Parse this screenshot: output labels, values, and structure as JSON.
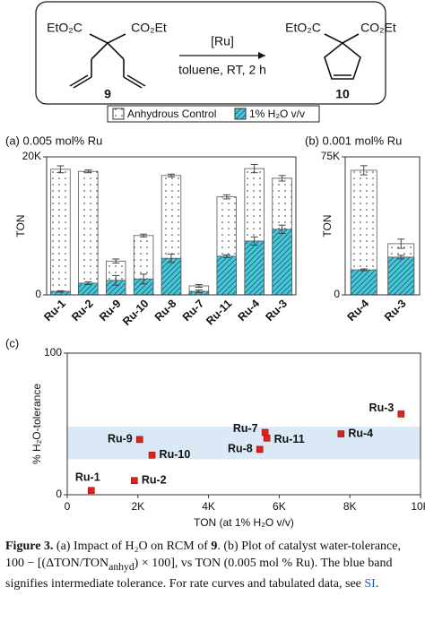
{
  "scheme": {
    "reactant": {
      "left_group": "EtO₂C",
      "right_group": "CO₂Et",
      "label": "9"
    },
    "reagent": "[Ru]",
    "conditions": "toluene, RT, 2 h",
    "product": {
      "left_group": "EtO₂C",
      "right_group": "CO₂Et",
      "label": "10"
    }
  },
  "chart_data": [
    {
      "type": "bar",
      "title": "(a) 0.005 mol% Ru",
      "y_label": "TON",
      "categories": [
        "Ru-1",
        "Ru-2",
        "Ru-9",
        "Ru-10",
        "Ru-8",
        "Ru-7",
        "Ru-11",
        "Ru-4",
        "Ru-3"
      ],
      "series": [
        {
          "name": "Anhydrous Control",
          "color": "#ffffff",
          "pattern": "dots",
          "values": [
            18200,
            17900,
            4900,
            8600,
            17300,
            1300,
            14200,
            18300,
            16900
          ],
          "errors": [
            500,
            200,
            300,
            200,
            200,
            200,
            300,
            600,
            400
          ]
        },
        {
          "name": "1% H₂O v/v",
          "color": "#4cc6d8",
          "pattern": "hatch",
          "values": [
            500,
            1700,
            2100,
            2300,
            5300,
            500,
            5600,
            7800,
            9500
          ],
          "errors": [
            100,
            200,
            700,
            700,
            600,
            200,
            200,
            600,
            600
          ]
        }
      ],
      "ylim": [
        0,
        20000
      ],
      "yticks": [
        0,
        {
          "value": 20000,
          "label": "20K"
        }
      ]
    },
    {
      "type": "bar",
      "title": "(b) 0.001 mol% Ru",
      "y_label": "TON",
      "categories": [
        "Ru-4",
        "Ru-3"
      ],
      "series": [
        {
          "color": "#ffffff",
          "pattern": "dots",
          "values": [
            67700,
            27800
          ],
          "errors": [
            2500,
            2500
          ]
        },
        {
          "color": "#4cc6d8",
          "pattern": "hatch",
          "values": [
            13600,
            20500
          ],
          "errors": [
            500,
            1000
          ]
        }
      ],
      "ylim": [
        0,
        75000
      ],
      "yticks": [
        0,
        {
          "value": 75000,
          "label": "75K"
        }
      ]
    },
    {
      "type": "scatter",
      "title": "(c)",
      "y_label": "% H₂O-tolerance",
      "x_label": "TON (at 1% H₂O v/v)",
      "labels": [
        "Ru-1",
        "Ru-2",
        "Ru-9",
        "Ru-10",
        "Ru-8",
        "Ru-7",
        "Ru-11",
        "Ru-4",
        "Ru-3"
      ],
      "x": [
        680,
        1900,
        2050,
        2400,
        5450,
        5600,
        5650,
        7750,
        9450
      ],
      "values": [
        3,
        10,
        39,
        28,
        32,
        44,
        40,
        43,
        57
      ],
      "color": "#d9251d",
      "band": [
        25,
        48
      ],
      "band_color": "#dbe9f6",
      "xlim": [
        0,
        10000
      ],
      "xticks": [
        0,
        {
          "value": 2000,
          "label": "2K"
        },
        {
          "value": 4000,
          "label": "4K"
        },
        {
          "value": 6000,
          "label": "6K"
        },
        {
          "value": 8000,
          "label": "8K"
        },
        {
          "value": 10000,
          "label": "10K"
        }
      ],
      "ylim": [
        0,
        100
      ],
      "yticks": [
        0,
        100
      ]
    }
  ],
  "caption": {
    "label": "Figure 3.",
    "text_1": " (a) Impact of H₂O on RCM of ",
    "compound": "9",
    "text_2": ". (b) Plot of catalyst water-tolerance, 100 − [(ΔTON/TON",
    "subscript": "anhyd",
    "text_3": ") × 100], vs TON (0.005 mol % Ru). The blue band signifies intermediate tolerance. For rate curves and tabulated data, see ",
    "link": "SI",
    "text_4": "."
  }
}
